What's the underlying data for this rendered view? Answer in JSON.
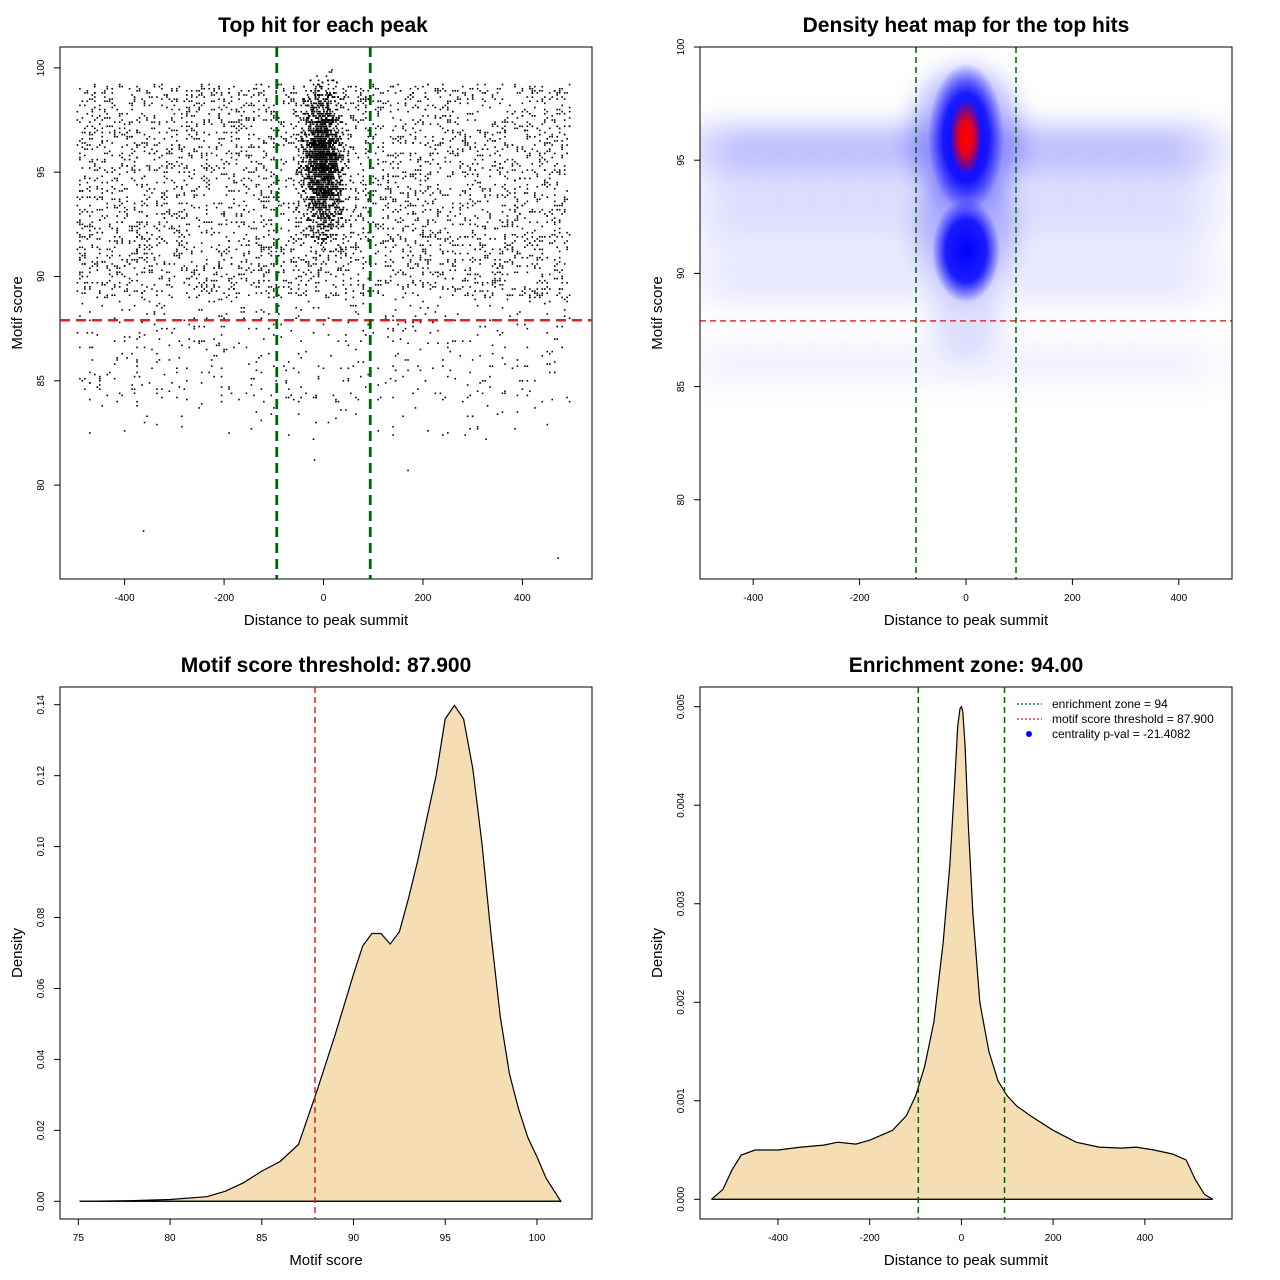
{
  "chart_data": [
    {
      "type": "scatter",
      "title": "Top hit for each peak",
      "xlabel": "Distance to peak summit",
      "ylabel": "Motif score",
      "xlim": [
        -530,
        540
      ],
      "ylim": [
        75.5,
        101
      ],
      "xticks": [
        -400,
        -200,
        0,
        200,
        400
      ],
      "yticks": [
        80,
        85,
        90,
        95,
        100
      ],
      "xtick_labels": [
        "-400",
        "-200",
        "0",
        "200",
        "400"
      ],
      "ytick_labels": [
        "80",
        "85",
        "90",
        "95",
        "100"
      ],
      "threshold_y": 87.9,
      "enrichment_x": [
        -94,
        94
      ],
      "threshold_color": "#dd2222",
      "zone_color": "#006400",
      "point_color": "#000000",
      "points_description": "about 9000 dots (distance to peak summit vs motif score), dense column within ±60 bp of the summit"
    },
    {
      "type": "heatmap",
      "title": "Density heat map for the top hits",
      "xlabel": "Distance to peak summit",
      "ylabel": "Motif score",
      "xlim": [
        -500,
        500
      ],
      "ylim": [
        76.5,
        100
      ],
      "xticks": [
        -400,
        -200,
        0,
        200,
        400
      ],
      "yticks": [
        80,
        85,
        90,
        95,
        100
      ],
      "xtick_labels": [
        "-400",
        "-200",
        "0",
        "200",
        "400"
      ],
      "ytick_labels": [
        "80",
        "85",
        "90",
        "95",
        "100"
      ],
      "threshold_y": 87.9,
      "enrichment_x": [
        -94,
        94
      ],
      "colors": [
        "#ffffff",
        "#0000ff",
        "#ff0000"
      ],
      "hotspot": {
        "x": 0,
        "y": 96
      },
      "secondary_hotspot": {
        "x": 0,
        "y": 91
      }
    },
    {
      "type": "area",
      "title": "Motif score threshold: 87.900",
      "xlabel": "Motif score",
      "ylabel": "Density",
      "xlim": [
        74,
        103
      ],
      "ylim": [
        -0.005,
        0.145
      ],
      "xticks": [
        75,
        80,
        85,
        90,
        95,
        100
      ],
      "yticks": [
        0,
        0.02,
        0.04,
        0.06,
        0.08,
        0.1,
        0.12,
        0.14
      ],
      "xtick_labels": [
        "75",
        "80",
        "85",
        "90",
        "95",
        "100"
      ],
      "ytick_labels": [
        "0.00",
        "0.02",
        "0.04",
        "0.06",
        "0.08",
        "0.10",
        "0.12",
        "0.14"
      ],
      "fill": "#f5deb3",
      "threshold_x": 87.9,
      "x": [
        75.1,
        78,
        80,
        82,
        83,
        84,
        85,
        86,
        87,
        88,
        89,
        90,
        90.5,
        91,
        91.5,
        92,
        92.5,
        93,
        93.5,
        94,
        94.5,
        95,
        95.5,
        96,
        96.5,
        97,
        97.5,
        98,
        98.5,
        99,
        99.5,
        100,
        100.5,
        101.3
      ],
      "y": [
        0.0,
        0.0002,
        0.0005,
        0.0013,
        0.0028,
        0.0052,
        0.0085,
        0.0112,
        0.016,
        0.031,
        0.047,
        0.064,
        0.072,
        0.0755,
        0.0755,
        0.0725,
        0.076,
        0.0855,
        0.096,
        0.108,
        0.12,
        0.136,
        0.1398,
        0.136,
        0.122,
        0.101,
        0.075,
        0.052,
        0.036,
        0.026,
        0.018,
        0.0125,
        0.0065,
        0.0
      ]
    },
    {
      "type": "area",
      "title": "Enrichment zone: 94.00",
      "xlabel": "Distance to peak summit",
      "ylabel": "Density",
      "xlim": [
        -570,
        590
      ],
      "ylim": [
        -0.0002,
        0.0052
      ],
      "xticks": [
        -400,
        -200,
        0,
        200,
        400
      ],
      "yticks": [
        0,
        0.001,
        0.002,
        0.003,
        0.004,
        0.005
      ],
      "xtick_labels": [
        "-400",
        "-200",
        "0",
        "200",
        "400"
      ],
      "ytick_labels": [
        "0.000",
        "0.001",
        "0.002",
        "0.003",
        "0.004",
        "0.005"
      ],
      "fill": "#f5deb3",
      "enrichment_x": [
        -94,
        94
      ],
      "x": [
        -545,
        -520,
        -500,
        -480,
        -450,
        -400,
        -350,
        -300,
        -270,
        -230,
        -200,
        -150,
        -120,
        -100,
        -80,
        -60,
        -40,
        -25,
        -15,
        -8,
        -3,
        0,
        3,
        8,
        15,
        25,
        40,
        60,
        80,
        100,
        120,
        150,
        200,
        250,
        300,
        350,
        380,
        420,
        460,
        490,
        510,
        530,
        548
      ],
      "y": [
        0.0,
        0.0001,
        0.0003,
        0.00045,
        0.0005,
        0.0005,
        0.00053,
        0.00055,
        0.00058,
        0.00056,
        0.0006,
        0.0007,
        0.00085,
        0.00105,
        0.00135,
        0.0018,
        0.0026,
        0.0034,
        0.0042,
        0.0048,
        0.00498,
        0.005,
        0.00495,
        0.0046,
        0.0038,
        0.0029,
        0.002,
        0.0015,
        0.0012,
        0.00105,
        0.00095,
        0.00085,
        0.0007,
        0.00058,
        0.00053,
        0.00052,
        0.00053,
        0.0005,
        0.00046,
        0.0004,
        0.0002,
        5e-05,
        0.0
      ],
      "legend": [
        {
          "label": "enrichment zone = 94",
          "color": "#006400",
          "style": "dotted-line"
        },
        {
          "label": "motif score threshold = 87.900",
          "color": "#dd2222",
          "style": "dotted-line"
        },
        {
          "label": "centrality p-val = -21.4082",
          "color": "#0000ff",
          "style": "dot"
        }
      ],
      "legend_position": "top-right"
    }
  ]
}
